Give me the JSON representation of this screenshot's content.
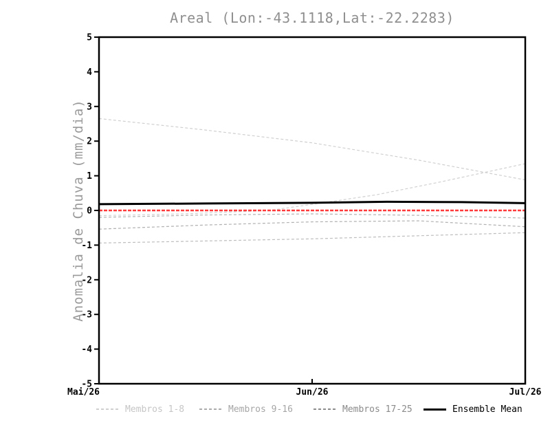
{
  "title": "Areal (Lon:-43.1118,Lat:-22.2283)",
  "ylabel": "Anomalia de Chuva (mm/dia)",
  "colors": {
    "background": "#ffffff",
    "title_gray": "#8f8f8f",
    "axis_black": "#000000",
    "members_1_8": "#cfcfcf",
    "members_9_16": "#ababab",
    "members_17_25": "#8c8c8c",
    "zero_line_red": "#ff3a3a",
    "ensemble_black": "#000000"
  },
  "chart_data": {
    "type": "line",
    "title": "Areal (Lon:-43.1118,Lat:-22.2283)",
    "xlabel": "",
    "ylabel": "Anomalia de Chuva (mm/dia)",
    "ylim": [
      -5,
      5
    ],
    "xlim": [
      0,
      2
    ],
    "grid": false,
    "yticks": [
      {
        "value": 5,
        "label": "5"
      },
      {
        "value": 4,
        "label": "4"
      },
      {
        "value": 3,
        "label": "3"
      },
      {
        "value": 2,
        "label": "2"
      },
      {
        "value": 1,
        "label": "1"
      },
      {
        "value": 0,
        "label": "0"
      },
      {
        "value": -1,
        "label": "-1"
      },
      {
        "value": -2,
        "label": "-2"
      },
      {
        "value": -3,
        "label": "-3"
      },
      {
        "value": -4,
        "label": "-4"
      },
      {
        "value": -5,
        "label": "-5"
      }
    ],
    "xticks": [
      {
        "x": 0,
        "label": "Mai/26"
      },
      {
        "x": 1,
        "label": "Jun/26"
      },
      {
        "x": 2,
        "label": "Jul/26"
      }
    ],
    "series": [
      {
        "name": "member-descending",
        "group": "Membros 1-8",
        "color": "#cfcfcf",
        "dash": "4 3",
        "width": 1.2,
        "x": [
          0,
          0.5,
          1,
          1.5,
          2
        ],
        "y": [
          2.65,
          2.32,
          1.95,
          1.45,
          0.88
        ]
      },
      {
        "name": "member-rising",
        "group": "Membros 1-8",
        "color": "#cfcfcf",
        "dash": "4 3",
        "width": 1.2,
        "x": [
          0,
          0.4,
          0.8,
          1.05,
          1.3,
          1.6,
          2
        ],
        "y": [
          -0.15,
          -0.1,
          0.0,
          0.22,
          0.45,
          0.82,
          1.35
        ]
      },
      {
        "name": "member-near-zero",
        "group": "Membros 9-16",
        "color": "#b0b0b0",
        "dash": "4 3",
        "width": 1.2,
        "x": [
          0,
          0.5,
          1,
          1.5,
          2
        ],
        "y": [
          -0.2,
          -0.13,
          -0.1,
          -0.14,
          -0.22
        ]
      },
      {
        "name": "member-mid-low",
        "group": "Membros 9-16",
        "color": "#b0b0b0",
        "dash": "4 3",
        "width": 1.2,
        "x": [
          0,
          0.5,
          1,
          1.5,
          2
        ],
        "y": [
          -0.54,
          -0.42,
          -0.33,
          -0.3,
          -0.47
        ]
      },
      {
        "name": "member-low",
        "group": "Membros 17-25",
        "color": "#bdbdbd",
        "dash": "4 3",
        "width": 1.2,
        "x": [
          0,
          0.5,
          1,
          1.5,
          2
        ],
        "y": [
          -0.94,
          -0.88,
          -0.82,
          -0.73,
          -0.64
        ]
      },
      {
        "name": "zero-climatology-line",
        "group": "reference",
        "color": "#ff3a3a",
        "dash": "5 2",
        "width": 2.5,
        "x": [
          0,
          2
        ],
        "y": [
          0,
          0
        ]
      },
      {
        "name": "ensemble-mean-line",
        "group": "Ensemble Mean",
        "color": "#000000",
        "dash": null,
        "width": 3,
        "x": [
          0,
          0.5,
          1,
          1.35,
          1.7,
          2
        ],
        "y": [
          0.18,
          0.2,
          0.22,
          0.25,
          0.24,
          0.21
        ]
      }
    ],
    "legend": [
      {
        "label": "Membros 1-8",
        "color": "#cfcfcf",
        "text_color": "#c6c6c6",
        "line": "dashed"
      },
      {
        "label": "Membros 9-16",
        "color": "#ababab",
        "text_color": "#a6a6a6",
        "line": "dashed"
      },
      {
        "label": "Membros 17-25",
        "color": "#8c8c8c",
        "text_color": "#8a8a8a",
        "line": "dashed"
      },
      {
        "label": "Ensemble Mean",
        "color": "#000000",
        "text_color": "#000000",
        "line": "solid"
      }
    ],
    "legend_position": "bottom"
  }
}
